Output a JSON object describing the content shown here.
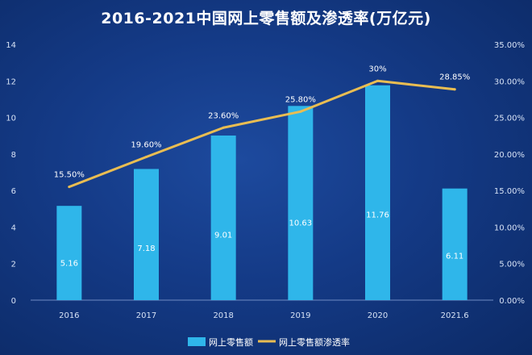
{
  "chart_data": {
    "type": "bar",
    "title": "2016-2021中国网上零售额及渗透率(万亿元)",
    "categories": [
      "2016",
      "2017",
      "2018",
      "2019",
      "2020",
      "2021.6"
    ],
    "series": [
      {
        "name": "网上零售额",
        "chart_type": "bar",
        "axis": "left",
        "values": [
          5.16,
          7.18,
          9.01,
          10.63,
          11.76,
          6.11
        ],
        "labels": [
          "5.16",
          "7.18",
          "9.01",
          "10.63",
          "11.76",
          "6.11"
        ],
        "color": "#2fb6ea"
      },
      {
        "name": "网上零售额渗透率",
        "chart_type": "line",
        "axis": "right",
        "values": [
          15.5,
          19.6,
          23.6,
          25.8,
          30.0,
          28.85
        ],
        "labels": [
          "15.50%",
          "19.60%",
          "23.60%",
          "25.80%",
          "30%",
          "28.85%"
        ],
        "color": "#e9bd52"
      }
    ],
    "y_left": {
      "min": 0,
      "max": 14,
      "ticks": [
        "0",
        "2",
        "4",
        "6",
        "8",
        "10",
        "12",
        "14"
      ]
    },
    "y_right": {
      "min": 0,
      "max": 35,
      "ticks": [
        "0.00%",
        "5.00%",
        "10.00%",
        "15.00%",
        "20.00%",
        "25.00%",
        "30.00%",
        "35.00%"
      ]
    },
    "legend_position": "bottom",
    "grid": false
  },
  "colors": {
    "background": "#143a86",
    "bar": "#2fb6ea",
    "line": "#e9bd52",
    "text": "#ffffff",
    "axis_text": "#d6e2f5"
  }
}
